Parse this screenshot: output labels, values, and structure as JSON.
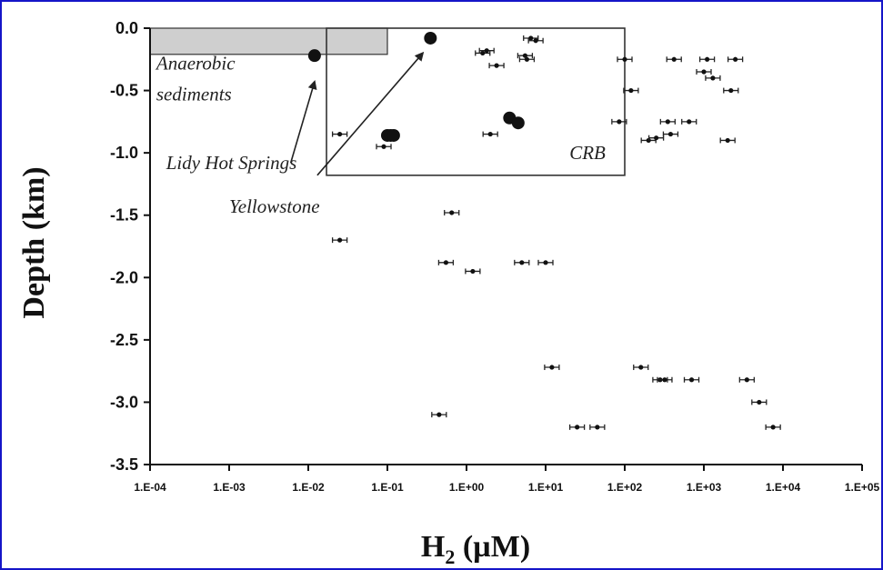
{
  "chart_data": {
    "type": "scatter",
    "title": "",
    "xlabel": {
      "base": "H",
      "sub": "2",
      "unit": " (µM)"
    },
    "ylabel": "Depth (km)",
    "xscale": "log",
    "xlim": [
      0.0001,
      100000
    ],
    "ylim": [
      -3.5,
      0.0
    ],
    "x_tick_labels": [
      "1.E-04",
      "1.E-03",
      "1.E-02",
      "1.E-01",
      "1.E+00",
      "1.E+01",
      "1.E+02",
      "1.E+03",
      "1.E+04",
      "1.E+05"
    ],
    "x_tick_values": [
      0.0001,
      0.001,
      0.01,
      0.1,
      1,
      10,
      100,
      1000,
      10000,
      100000
    ],
    "y_tick_labels": [
      "0.0",
      "-0.5",
      "-1.0",
      "-1.5",
      "-2.0",
      "-2.5",
      "-3.0",
      "-3.5"
    ],
    "y_tick_values": [
      0.0,
      -0.5,
      -1.0,
      -1.5,
      -2.0,
      -2.5,
      -3.0,
      -3.5
    ],
    "grid": false,
    "series": [
      {
        "marker": "small-with-error-bars",
        "points": [
          [
            0.025,
            -0.85
          ],
          [
            0.025,
            -1.7
          ],
          [
            0.09,
            -0.95
          ],
          [
            0.65,
            -1.48
          ],
          [
            0.45,
            -3.1
          ],
          [
            0.55,
            -1.88
          ],
          [
            1.2,
            -1.95
          ],
          [
            1.6,
            -0.2
          ],
          [
            1.8,
            -0.18
          ],
          [
            2.0,
            -0.85
          ],
          [
            2.4,
            -0.3
          ],
          [
            5.0,
            -1.88
          ],
          [
            5.5,
            -0.22
          ],
          [
            5.8,
            -0.25
          ],
          [
            6.5,
            -0.08
          ],
          [
            7.5,
            -0.1
          ],
          [
            10,
            -1.88
          ],
          [
            12,
            -2.72
          ],
          [
            25,
            -3.2
          ],
          [
            45,
            -3.2
          ],
          [
            85,
            -0.75
          ],
          [
            100,
            -0.25
          ],
          [
            120,
            -0.5
          ],
          [
            160,
            -2.72
          ],
          [
            200,
            -0.9
          ],
          [
            250,
            -0.88
          ],
          [
            280,
            -2.82
          ],
          [
            320,
            -2.82
          ],
          [
            350,
            -0.75
          ],
          [
            380,
            -0.85
          ],
          [
            420,
            -0.25
          ],
          [
            650,
            -0.75
          ],
          [
            700,
            -2.82
          ],
          [
            1000,
            -0.35
          ],
          [
            1100,
            -0.25
          ],
          [
            1300,
            -0.4
          ],
          [
            2000,
            -0.9
          ],
          [
            2200,
            -0.5
          ],
          [
            2500,
            -0.25
          ],
          [
            3500,
            -2.82
          ],
          [
            5000,
            -3.0
          ],
          [
            7500,
            -3.2
          ]
        ]
      },
      {
        "marker": "large-dot",
        "points": [
          [
            0.012,
            -0.22
          ],
          [
            0.35,
            -0.08
          ],
          [
            0.1,
            -0.86
          ],
          [
            0.11,
            -0.86
          ],
          [
            0.12,
            -0.86
          ],
          [
            3.5,
            -0.72
          ],
          [
            4.5,
            -0.76
          ]
        ]
      }
    ],
    "shaded_region": {
      "label": "Anaerobic sediments",
      "x": [
        0.0001,
        0.1
      ],
      "y": [
        0.0,
        -0.21
      ],
      "color": "#cfcfcf"
    },
    "inset_box": {
      "label": "CRB",
      "x": [
        0.017,
        100
      ],
      "y": [
        0.0,
        -1.18
      ]
    },
    "annotations": [
      {
        "text": "Anaerobic",
        "x": 0.00012,
        "y": -0.33
      },
      {
        "text": "sediments",
        "x": 0.00012,
        "y": -0.58
      },
      {
        "text": "Lidy Hot Springs",
        "x": 0.00016,
        "y": -1.13
      },
      {
        "text": "Yellowstone",
        "x": 0.001,
        "y": -1.48
      },
      {
        "text": "CRB",
        "x": 20,
        "y": -1.05
      }
    ],
    "arrows": [
      {
        "from": [
          0.006,
          -1.08
        ],
        "to": [
          0.012,
          -0.43
        ]
      },
      {
        "from": [
          0.013,
          -1.18
        ],
        "to": [
          0.28,
          -0.2
        ]
      }
    ],
    "colors": {
      "marker": "#111111",
      "frame": "#1515c8"
    }
  }
}
